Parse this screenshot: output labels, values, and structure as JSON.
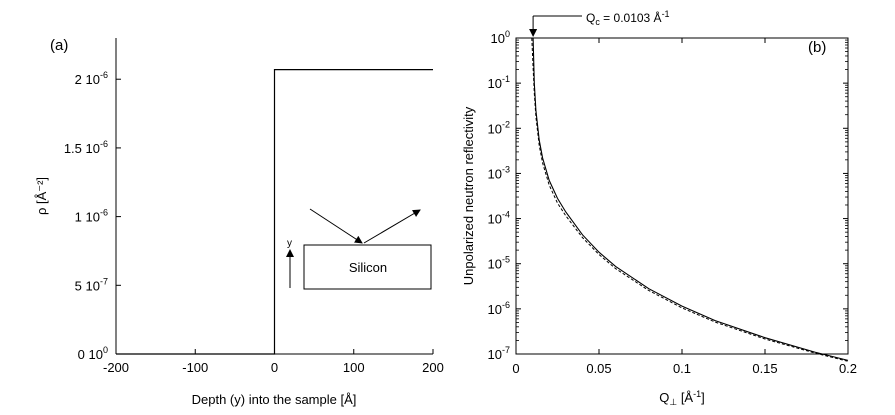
{
  "chart_data": [
    {
      "panel": "(a)",
      "type": "line",
      "title": "",
      "xlabel": "Depth (y) into the sample [Å]",
      "ylabel": "ρ [Å⁻²]",
      "xlim": [
        -200,
        200
      ],
      "ylim": [
        0,
        2.3e-06
      ],
      "xticks": [
        -200,
        -100,
        0,
        100,
        200
      ],
      "xtick_labels": [
        "-200",
        "-100",
        "0",
        "100",
        "200"
      ],
      "yticks": [
        0,
        5e-07,
        1e-06,
        1.5e-06,
        2e-06
      ],
      "ytick_labels": [
        {
          "mant": "0 10",
          "exp": "0"
        },
        {
          "mant": "5 10",
          "exp": "-7"
        },
        {
          "mant": "1 10",
          "exp": "-6"
        },
        {
          "mant": "1.5 10",
          "exp": "-6"
        },
        {
          "mant": "2 10",
          "exp": "-6"
        }
      ],
      "series": [
        {
          "x": [
            -200,
            0,
            0,
            200
          ],
          "y": [
            0,
            0,
            2.07e-06,
            2.07e-06
          ]
        }
      ],
      "inset": {
        "box_label": "Silicon",
        "axis_label": "y"
      }
    },
    {
      "panel": "(b)",
      "type": "line",
      "title": "",
      "xlabel": "Q⊥ [Å⁻¹]",
      "ylabel": "Unpolarized neutron reflectivity",
      "xlim": [
        0,
        0.2
      ],
      "ylim": [
        1e-07,
        1
      ],
      "yscale": "log",
      "xticks": [
        0,
        0.05,
        0.1,
        0.15,
        0.2
      ],
      "xtick_labels": [
        "0",
        "0.05",
        "0.1",
        "0.15",
        "0.2"
      ],
      "yticks": [
        1,
        0.1,
        0.01,
        0.001,
        0.0001,
        1e-05,
        1e-06,
        1e-07
      ],
      "ytick_labels": [
        {
          "mant": "10",
          "exp": "0"
        },
        {
          "mant": "10",
          "exp": "-1"
        },
        {
          "mant": "10",
          "exp": "-2"
        },
        {
          "mant": "10",
          "exp": "-3"
        },
        {
          "mant": "10",
          "exp": "-4"
        },
        {
          "mant": "10",
          "exp": "-5"
        },
        {
          "mant": "10",
          "exp": "-6"
        },
        {
          "mant": "10",
          "exp": "-7"
        }
      ],
      "series": [
        {
          "style": "solid",
          "x": [
            0,
            0.0103,
            0.0103,
            0.011,
            0.012,
            0.014,
            0.016,
            0.02,
            0.025,
            0.03,
            0.04,
            0.05,
            0.06,
            0.08,
            0.1,
            0.12,
            0.15,
            0.18,
            0.2
          ],
          "y": [
            1,
            1,
            1,
            0.1,
            0.025,
            0.0055,
            0.0022,
            0.0007,
            0.00028,
            0.00014,
            4.4e-05,
            1.8e-05,
            8.7e-06,
            2.8e-06,
            1.15e-06,
            5.5e-07,
            2.3e-07,
            1.1e-07,
            7.2e-08
          ]
        },
        {
          "style": "dashed",
          "x": [
            0.0095,
            0.0103,
            0.011,
            0.012,
            0.014,
            0.016,
            0.02,
            0.025,
            0.03,
            0.04,
            0.05,
            0.06,
            0.08,
            0.1,
            0.12,
            0.15,
            0.18,
            0.2
          ],
          "y": [
            1,
            0.22,
            0.06,
            0.018,
            0.0042,
            0.0017,
            0.00055,
            0.00022,
            0.000115,
            3.8e-05,
            1.6e-05,
            7.8e-06,
            2.55e-06,
            1.05e-06,
            5.1e-07,
            2.15e-07,
            1.05e-07,
            6.9e-08
          ]
        }
      ],
      "annotation": {
        "text": "Q",
        "subscript": "c",
        "rest": " = 0.0103 Å",
        "sup": "-1",
        "x": 0.0103
      }
    }
  ]
}
